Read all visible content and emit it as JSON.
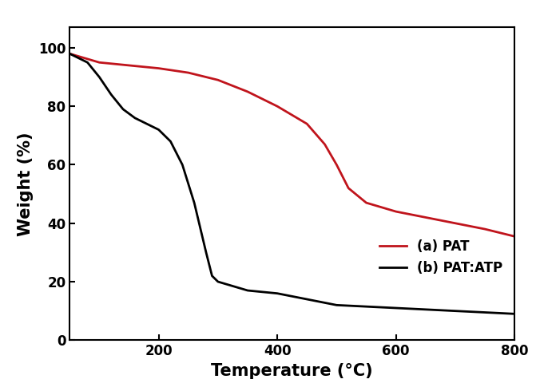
{
  "chart_data": {
    "type": "line",
    "x_label": "Temperature (°C)",
    "y_label": "Weight (%)",
    "xlim": [
      50,
      800
    ],
    "xticks": [
      200,
      400,
      600,
      800
    ],
    "ylim": [
      0,
      107
    ],
    "yticks": [
      0,
      20,
      40,
      60,
      80,
      100
    ],
    "legend": "lower right",
    "series": [
      {
        "name": "(a) PAT",
        "color": "#c0141c",
        "x": [
          50,
          100,
          150,
          200,
          250,
          300,
          350,
          400,
          450,
          480,
          500,
          520,
          550,
          600,
          650,
          700,
          750,
          800
        ],
        "values": [
          98,
          95,
          94,
          93,
          91.5,
          89,
          85,
          80,
          74,
          67,
          60,
          52,
          47,
          44,
          42,
          40,
          38,
          35.5
        ]
      },
      {
        "name": "(b) PAT:ATP",
        "color": "#000000",
        "x": [
          50,
          80,
          100,
          120,
          140,
          160,
          180,
          200,
          220,
          240,
          260,
          280,
          290,
          300,
          350,
          400,
          450,
          500,
          600,
          700,
          800
        ],
        "values": [
          98,
          95,
          90,
          84,
          79,
          76,
          74,
          72,
          68,
          60,
          47,
          30,
          22,
          20,
          17,
          16,
          14,
          12,
          11,
          10,
          9
        ]
      }
    ]
  }
}
